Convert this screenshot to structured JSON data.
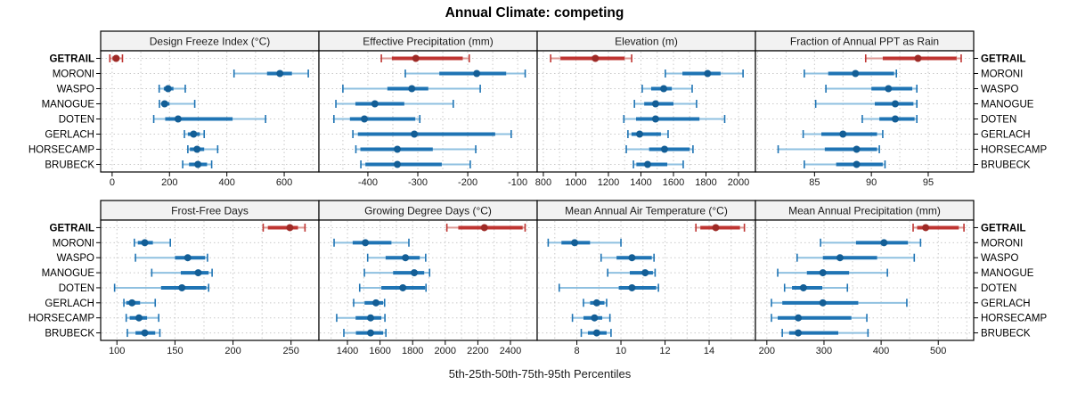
{
  "title": "Annual Climate: competing",
  "caption": "5th-25th-50th-75th-95th Percentiles",
  "sites": [
    "GETRAIL",
    "MORONI",
    "WASPO",
    "MANOGUE",
    "DOTEN",
    "GERLACH",
    "HORSECAMP",
    "BRUBECK"
  ],
  "highlight_site": "GETRAIL",
  "colors": {
    "blue_line": "#1f74b4",
    "blue_light": "#8fc0e0",
    "blue_dot": "#135e96",
    "red_line": "#bf3532",
    "red_light": "#dc9a95",
    "red_dot": "#9e2a26",
    "grid": "#c9c9c9",
    "panel_border": "#000000",
    "strip_fill": "#f2f2f2",
    "tick_label": "#1a1a1a"
  },
  "chart_data": {
    "type": "scatter",
    "subtype": "trellis-percentile-interval-dotplot",
    "layout": "2 rows x 4 cols",
    "legend_position": "none",
    "grid": "dotted, minor at half-tick steps",
    "percentile_levels": [
      5,
      25,
      50,
      75,
      95
    ],
    "panels": [
      {
        "title": "Design Freeze Index (°C)",
        "grid": {
          "row": 0,
          "col": 0
        },
        "xlim": [
          -40,
          721
        ],
        "xticks": [
          0,
          200,
          400,
          600
        ],
        "series": [
          {
            "site": "GETRAIL",
            "percentiles": [
              -8,
              1,
              14,
              25,
              36
            ]
          },
          {
            "site": "MORONI",
            "percentiles": [
              425,
              540,
              585,
              627,
              684
            ]
          },
          {
            "site": "WASPO",
            "percentiles": [
              164,
              180,
              195,
              214,
              255
            ]
          },
          {
            "site": "MANOGUE",
            "percentiles": [
              165,
              172,
              183,
              200,
              288
            ]
          },
          {
            "site": "DOTEN",
            "percentiles": [
              145,
              185,
              230,
              420,
              535
            ]
          },
          {
            "site": "GERLACH",
            "percentiles": [
              252,
              264,
              284,
              306,
              321
            ]
          },
          {
            "site": "HORSECAMP",
            "percentiles": [
              264,
              271,
              296,
              321,
              368
            ]
          },
          {
            "site": "BRUBECK",
            "percentiles": [
              246,
              268,
              299,
              331,
              347
            ]
          }
        ]
      },
      {
        "title": "Effective Precipitation (mm)",
        "grid": {
          "row": 0,
          "col": 1
        },
        "xlim": [
          -498,
          -61
        ],
        "xticks": [
          -400,
          -300,
          -200,
          -100
        ],
        "series": [
          {
            "site": "GETRAIL",
            "percentiles": [
              -373,
              -352,
              -304,
              -210,
              -197
            ]
          },
          {
            "site": "MORONI",
            "percentiles": [
              -325,
              -257,
              -182,
              -123,
              -85
            ]
          },
          {
            "site": "WASPO",
            "percentiles": [
              -450,
              -361,
              -312,
              -279,
              -175
            ]
          },
          {
            "site": "MANOGUE",
            "percentiles": [
              -464,
              -425,
              -386,
              -327,
              -229
            ]
          },
          {
            "site": "DOTEN",
            "percentiles": [
              -468,
              -436,
              -407,
              -305,
              -296
            ]
          },
          {
            "site": "GERLACH",
            "percentiles": [
              -430,
              -420,
              -307,
              -145,
              -113
            ]
          },
          {
            "site": "HORSECAMP",
            "percentiles": [
              -424,
              -415,
              -341,
              -270,
              -184
            ]
          },
          {
            "site": "BRUBECK",
            "percentiles": [
              -414,
              -405,
              -341,
              -252,
              -195
            ]
          }
        ]
      },
      {
        "title": "Elevation (m)",
        "grid": {
          "row": 0,
          "col": 2
        },
        "xlim": [
          762,
          2104
        ],
        "xticks": [
          800,
          1000,
          1200,
          1400,
          1600,
          1800,
          2000
        ],
        "series": [
          {
            "site": "GETRAIL",
            "percentiles": [
              845,
              905,
              1120,
              1300,
              1343
            ]
          },
          {
            "site": "MORONI",
            "percentiles": [
              1550,
              1655,
              1810,
              1890,
              2028
            ]
          },
          {
            "site": "WASPO",
            "percentiles": [
              1408,
              1463,
              1540,
              1590,
              1715
            ]
          },
          {
            "site": "MANOGUE",
            "percentiles": [
              1360,
              1420,
              1490,
              1600,
              1742
            ]
          },
          {
            "site": "DOTEN",
            "percentiles": [
              1295,
              1370,
              1490,
              1760,
              1915
            ]
          },
          {
            "site": "GERLACH",
            "percentiles": [
              1320,
              1342,
              1392,
              1523,
              1567
            ]
          },
          {
            "site": "HORSECAMP",
            "percentiles": [
              1310,
              1450,
              1545,
              1700,
              1720
            ]
          },
          {
            "site": "BRUBECK",
            "percentiles": [
              1354,
              1372,
              1441,
              1562,
              1660
            ]
          }
        ]
      },
      {
        "title": "Fraction of Annual PPT as Rain",
        "grid": {
          "row": 0,
          "col": 3
        },
        "xlim": [
          79.8,
          99.0
        ],
        "xticks": [
          85,
          90,
          95
        ],
        "series": [
          {
            "site": "GETRAIL",
            "percentiles": [
              89.5,
              91.0,
              94.1,
              97.5,
              97.9
            ]
          },
          {
            "site": "MORONI",
            "percentiles": [
              84.1,
              86.2,
              88.6,
              92.0,
              92.2
            ]
          },
          {
            "site": "WASPO",
            "percentiles": [
              86.0,
              90.0,
              91.5,
              93.6,
              94.0
            ]
          },
          {
            "site": "MANOGUE",
            "percentiles": [
              85.1,
              90.3,
              92.1,
              93.7,
              94.0
            ]
          },
          {
            "site": "DOTEN",
            "percentiles": [
              89.2,
              90.7,
              92.1,
              93.8,
              94.0
            ]
          },
          {
            "site": "GERLACH",
            "percentiles": [
              84.0,
              85.6,
              87.5,
              90.5,
              91.0
            ]
          },
          {
            "site": "HORSECAMP",
            "percentiles": [
              81.8,
              85.9,
              88.7,
              90.5,
              90.7
            ]
          },
          {
            "site": "BRUBECK",
            "percentiles": [
              84.1,
              86.9,
              88.7,
              91.0,
              91.2
            ]
          }
        ]
      },
      {
        "title": "Frost-Free Days",
        "grid": {
          "row": 1,
          "col": 0
        },
        "xlim": [
          86,
          274
        ],
        "xticks": [
          100,
          150,
          200,
          250
        ],
        "series": [
          {
            "site": "GETRAIL",
            "percentiles": [
              226,
              230,
              249,
              256,
              262
            ]
          },
          {
            "site": "MORONI",
            "percentiles": [
              115,
              118,
              124,
              131,
              146
            ]
          },
          {
            "site": "WASPO",
            "percentiles": [
              116,
              150,
              161,
              176,
              178
            ]
          },
          {
            "site": "MANOGUE",
            "percentiles": [
              130,
              155,
              170,
              179,
              182
            ]
          },
          {
            "site": "DOTEN",
            "percentiles": [
              98,
              138,
              156,
              177,
              179
            ]
          },
          {
            "site": "GERLACH",
            "percentiles": [
              106,
              108,
              113,
              120,
              133
            ]
          },
          {
            "site": "HORSECAMP",
            "percentiles": [
              108,
              111,
              119,
              126,
              136
            ]
          },
          {
            "site": "BRUBECK",
            "percentiles": [
              109,
              116,
              124,
              133,
              137
            ]
          }
        ]
      },
      {
        "title": "Growing Degree Days (°C)",
        "grid": {
          "row": 1,
          "col": 1
        },
        "xlim": [
          1225,
          2564
        ],
        "xticks": [
          1400,
          1600,
          1800,
          2000,
          2200,
          2400
        ],
        "series": [
          {
            "site": "GETRAIL",
            "percentiles": [
              2010,
              2080,
              2240,
              2475,
              2490
            ]
          },
          {
            "site": "MORONI",
            "percentiles": [
              1318,
              1432,
              1510,
              1670,
              1777
            ]
          },
          {
            "site": "WASPO",
            "percentiles": [
              1524,
              1634,
              1756,
              1844,
              1880
            ]
          },
          {
            "site": "MANOGUE",
            "percentiles": [
              1504,
              1680,
              1810,
              1871,
              1904
            ]
          },
          {
            "site": "DOTEN",
            "percentiles": [
              1475,
              1608,
              1740,
              1876,
              1882
            ]
          },
          {
            "site": "GERLACH",
            "percentiles": [
              1438,
              1505,
              1575,
              1619,
              1628
            ]
          },
          {
            "site": "HORSECAMP",
            "percentiles": [
              1334,
              1450,
              1542,
              1608,
              1630
            ]
          },
          {
            "site": "BRUBECK",
            "percentiles": [
              1378,
              1452,
              1542,
              1619,
              1636
            ]
          }
        ]
      },
      {
        "title": "Mean Annual Air Temperature (°C)",
        "grid": {
          "row": 1,
          "col": 2
        },
        "xlim": [
          6.2,
          16.1
        ],
        "xticks": [
          8,
          10,
          12,
          14
        ],
        "series": [
          {
            "site": "GETRAIL",
            "percentiles": [
              13.4,
              13.6,
              14.3,
              15.4,
              15.6
            ]
          },
          {
            "site": "MORONI",
            "percentiles": [
              6.7,
              7.3,
              7.9,
              8.6,
              10.0
            ]
          },
          {
            "site": "WASPO",
            "percentiles": [
              9.1,
              9.8,
              10.5,
              11.4,
              11.5
            ]
          },
          {
            "site": "MANOGUE",
            "percentiles": [
              9.4,
              10.4,
              11.1,
              11.45,
              11.55
            ]
          },
          {
            "site": "DOTEN",
            "percentiles": [
              7.2,
              9.9,
              10.5,
              11.6,
              11.7
            ]
          },
          {
            "site": "GERLACH",
            "percentiles": [
              8.3,
              8.6,
              8.9,
              9.25,
              9.35
            ]
          },
          {
            "site": "HORSECAMP",
            "percentiles": [
              7.8,
              8.3,
              8.8,
              9.15,
              9.5
            ]
          },
          {
            "site": "BRUBECK",
            "percentiles": [
              8.2,
              8.5,
              8.9,
              9.35,
              9.55
            ]
          }
        ]
      },
      {
        "title": "Mean Annual Precipitation (mm)",
        "grid": {
          "row": 1,
          "col": 3
        },
        "xlim": [
          180,
          562
        ],
        "xticks": [
          200,
          300,
          400,
          500
        ],
        "series": [
          {
            "site": "GETRAIL",
            "percentiles": [
              456,
              463,
              478,
              536,
              545
            ]
          },
          {
            "site": "MORONI",
            "percentiles": [
              294,
              356,
              405,
              447,
              469
            ]
          },
          {
            "site": "WASPO",
            "percentiles": [
              253,
              298,
              328,
              393,
              458
            ]
          },
          {
            "site": "MANOGUE",
            "percentiles": [
              219,
              270,
              298,
              344,
              411
            ]
          },
          {
            "site": "DOTEN",
            "percentiles": [
              231,
              244,
              264,
              297,
              341
            ]
          },
          {
            "site": "GERLACH",
            "percentiles": [
              208,
              227,
              298,
              360,
              445
            ]
          },
          {
            "site": "HORSECAMP",
            "percentiles": [
              208,
              219,
              255,
              348,
              375
            ]
          },
          {
            "site": "BRUBECK",
            "percentiles": [
              227,
              239,
              255,
              325,
              377
            ]
          }
        ]
      }
    ]
  }
}
